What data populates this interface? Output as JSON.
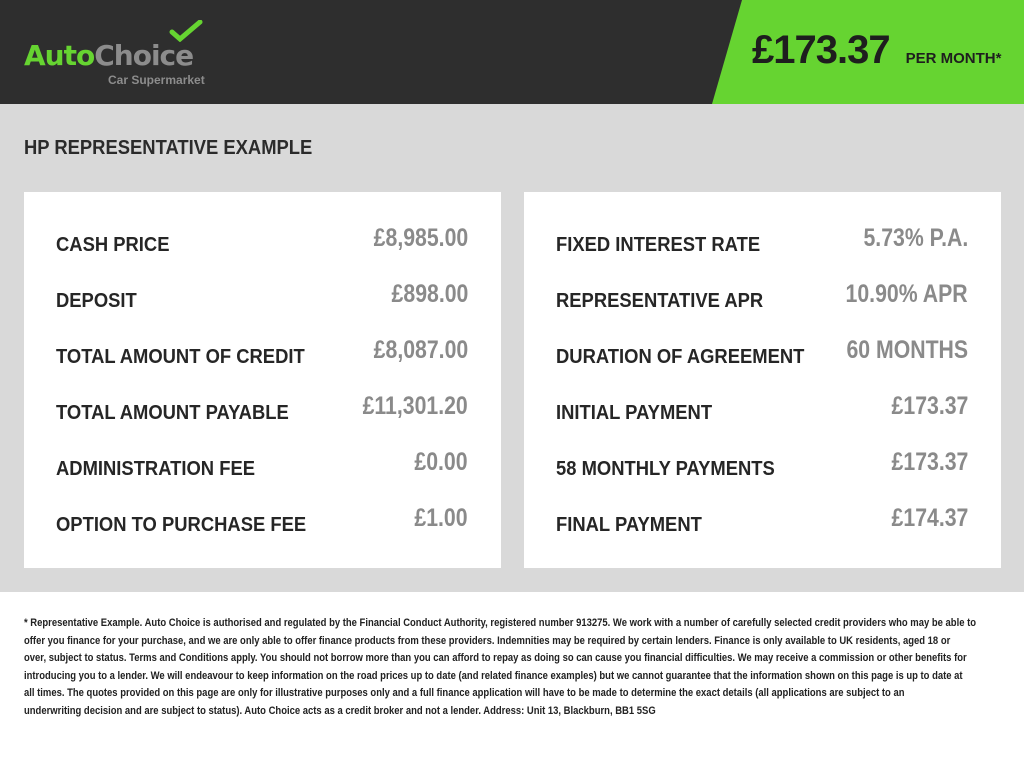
{
  "header": {
    "logo": {
      "auto": "Auto",
      "choice": "Choice",
      "tagline": "Car Supermarket"
    },
    "price": "£173.37",
    "per_month": "PER MONTH*",
    "accent": "#66d431"
  },
  "section_title": "HP REPRESENTATIVE EXAMPLE",
  "left": [
    {
      "label": "CASH PRICE",
      "value": "£8,985.00"
    },
    {
      "label": "DEPOSIT",
      "value": "£898.00"
    },
    {
      "label": "TOTAL AMOUNT OF CREDIT",
      "value": "£8,087.00"
    },
    {
      "label": "TOTAL AMOUNT PAYABLE",
      "value": "£11,301.20"
    },
    {
      "label": "ADMINISTRATION FEE",
      "value": "£0.00"
    },
    {
      "label": "OPTION TO PURCHASE FEE",
      "value": "£1.00"
    }
  ],
  "right": [
    {
      "label": "FIXED INTEREST RATE",
      "value": "5.73% P.A."
    },
    {
      "label": "REPRESENTATIVE APR",
      "value": "10.90% APR"
    },
    {
      "label": "DURATION OF AGREEMENT",
      "value": "60 MONTHS"
    },
    {
      "label": "INITIAL PAYMENT",
      "value": "£173.37"
    },
    {
      "label": "58 MONTHLY PAYMENTS",
      "value": "£173.37"
    },
    {
      "label": "FINAL PAYMENT",
      "value": "£174.37"
    }
  ],
  "footer": [
    "* Representative Example. Auto Choice is authorised and regulated by the Financial Conduct Authority, registered number 913275. We work with a number of carefully selected credit providers who may be able to",
    "offer you finance for your purchase, and we are only able to offer finance products from these providers. Indemnities may be required by certain lenders. Finance is only available to UK residents, aged 18 or",
    "over, subject to status. Terms and Conditions apply. You should not borrow more than you can afford to repay as doing so can cause you financial difficulties. We may receive a commission or other benefits for",
    "introducing you to a lender. We will endeavour to keep information on the road prices up to date (and related finance examples) but we cannot guarantee that the information shown on this page is up to date at",
    "all times. The quotes provided on this page are only for illustrative purposes only and a full finance application will have to be made to determine the exact details (all applications are subject to an",
    "underwriting decision and are subject to status). Auto Choice acts as a credit broker and not a lender. Address: Unit 13, Blackburn, BB1 5SG"
  ]
}
